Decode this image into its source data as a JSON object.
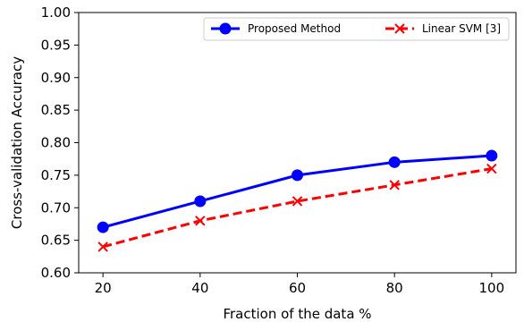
{
  "chart_data": {
    "type": "line",
    "title": "",
    "xlabel": "Fraction of the data %",
    "ylabel": "Cross-validation Accuracy",
    "x": [
      20,
      40,
      60,
      80,
      100
    ],
    "xlim": [
      15,
      105
    ],
    "ylim": [
      0.6,
      1.0
    ],
    "xticks": [
      "20",
      "40",
      "60",
      "80",
      "100"
    ],
    "xtick_values": [
      20,
      40,
      60,
      80,
      100
    ],
    "yticks": [
      "0.60",
      "0.65",
      "0.70",
      "0.75",
      "0.80",
      "0.85",
      "0.90",
      "0.95",
      "1.00"
    ],
    "ytick_values": [
      0.6,
      0.65,
      0.7,
      0.75,
      0.8,
      0.85,
      0.9,
      0.95,
      1.0
    ],
    "grid": false,
    "legend_position": "top-right",
    "series": [
      {
        "name": "Proposed Method",
        "values": [
          0.67,
          0.71,
          0.75,
          0.77,
          0.78
        ],
        "color": "#0000ff",
        "marker": "circle",
        "linestyle": "solid"
      },
      {
        "name": "Linear SVM [3]",
        "values": [
          0.64,
          0.68,
          0.71,
          0.735,
          0.76
        ],
        "color": "#ff0000",
        "marker": "x",
        "linestyle": "dashed"
      }
    ]
  }
}
